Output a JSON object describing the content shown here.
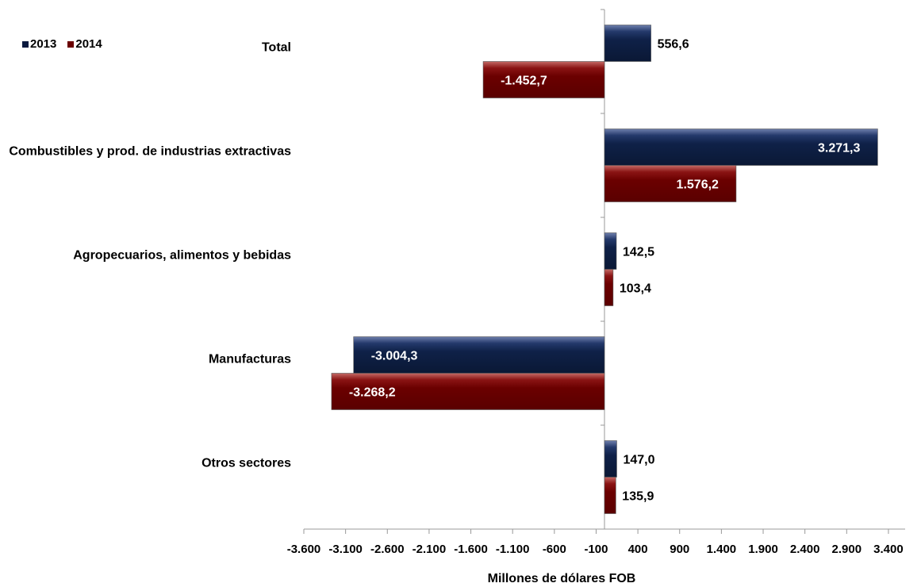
{
  "chart_data": {
    "type": "bar",
    "orientation": "horizontal",
    "categories": [
      "Total",
      "Combustibles y prod. de industrias extractivas",
      "Agropecuarios, alimentos y bebidas",
      "Manufacturas",
      "Otros sectores"
    ],
    "series": [
      {
        "name": "2013",
        "color": "#0a1a3f",
        "values": [
          556.6,
          3271.3,
          142.5,
          -3004.3,
          147.0
        ],
        "labels": [
          "556,6",
          "3.271,3",
          "142,5",
          "-3.004,3",
          "147,0"
        ]
      },
      {
        "name": "2014",
        "color": "#6b0000",
        "values": [
          -1452.7,
          1576.2,
          103.4,
          -3268.2,
          135.9
        ],
        "labels": [
          "-1.452,7",
          "1.576,2",
          "103,4",
          "-3.268,2",
          "135,9"
        ]
      }
    ],
    "xlabel": "Millones de dólares FOB",
    "xlim": [
      -3600,
      3600
    ],
    "xticks": [
      -3600,
      -3100,
      -2600,
      -2100,
      -1600,
      -1100,
      -600,
      -100,
      400,
      900,
      1400,
      1900,
      2400,
      2900,
      3400
    ],
    "xtick_labels": [
      "-3.600",
      "-3.100",
      "-2.600",
      "-2.100",
      "-1.600",
      "-1.100",
      "-600",
      "-100",
      "400",
      "900",
      "1.400",
      "1.900",
      "2.400",
      "2.900",
      "3.400"
    ],
    "legend": "top-left",
    "grid": false
  }
}
